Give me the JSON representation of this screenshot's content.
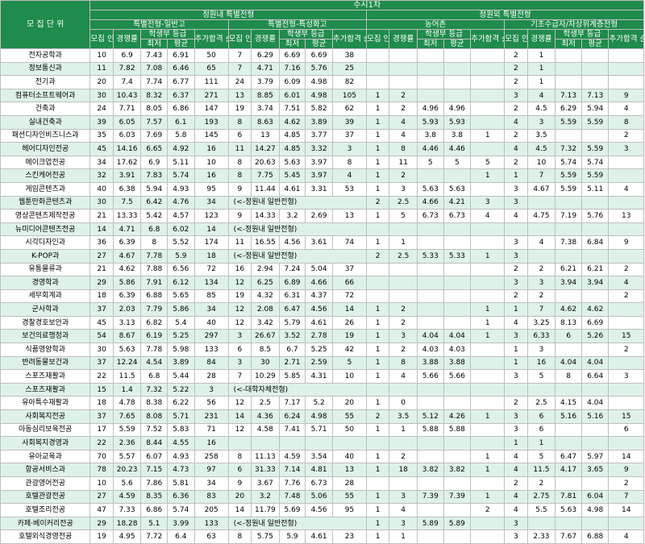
{
  "header": {
    "unit": "모 집 단 위",
    "round": "수시1차",
    "inside": "정원내 특별전형",
    "outside": "정원외 특별전형",
    "g1": "특별전형-일반고",
    "g2": "특별전형-특성화고",
    "g3": "농어촌",
    "g4": "기초수급자/차상위계층전형",
    "recruit": "모집 인원",
    "comp": "경쟁률",
    "grade": "학생부 등급",
    "min": "최저",
    "avg": "평균",
    "add": "추가합격 순위"
  },
  "rows": [
    {
      "name": "전자공학과",
      "v": [
        "10",
        "6.9",
        "7.43",
        "6.91",
        "50",
        "7",
        "6.29",
        "6.69",
        "6.69",
        "38",
        "",
        "",
        "",
        "",
        "",
        "2",
        "1",
        "",
        "",
        ""
      ]
    },
    {
      "name": "정보통신과",
      "v": [
        "11",
        "7.82",
        "7.08",
        "6.46",
        "65",
        "7",
        "4.71",
        "7.16",
        "5.76",
        "25",
        "",
        "",
        "",
        "",
        "",
        "2",
        "1",
        "",
        "",
        ""
      ]
    },
    {
      "name": "전기과",
      "v": [
        "20",
        "7.4",
        "7.74",
        "6.77",
        "111",
        "24",
        "3.79",
        "6.09",
        "4.98",
        "82",
        "",
        "",
        "",
        "",
        "",
        "2",
        "1",
        "",
        "",
        ""
      ]
    },
    {
      "name": "컴퓨터소프트웨어과",
      "v": [
        "30",
        "10.43",
        "8.32",
        "6.37",
        "271",
        "13",
        "8.85",
        "6.01",
        "4.98",
        "105",
        "1",
        "2",
        "",
        "",
        "",
        "3",
        "4",
        "7.13",
        "7.13",
        "9"
      ]
    },
    {
      "name": "건축과",
      "v": [
        "24",
        "7.71",
        "8.05",
        "6.86",
        "147",
        "19",
        "3.74",
        "7.51",
        "5.82",
        "62",
        "1",
        "2",
        "4.96",
        "4.96",
        "",
        "2",
        "4.5",
        "6.29",
        "5.94",
        "4"
      ]
    },
    {
      "name": "실내건축과",
      "v": [
        "39",
        "6.05",
        "7.57",
        "6.1",
        "193",
        "8",
        "8.63",
        "4.62",
        "3.89",
        "39",
        "1",
        "4",
        "5.93",
        "5.93",
        "",
        "4",
        "3",
        "5.59",
        "5.59",
        "8"
      ]
    },
    {
      "name": "패션디자인비즈니스과",
      "v": [
        "35",
        "6.03",
        "7.69",
        "5.8",
        "145",
        "6",
        "13",
        "4.85",
        "3.77",
        "37",
        "1",
        "4",
        "3.8",
        "3.8",
        "1",
        "2",
        "3.5",
        "",
        "",
        "2"
      ]
    },
    {
      "name": "헤어디자인전공",
      "v": [
        "45",
        "14.16",
        "6.65",
        "4.92",
        "16",
        "11",
        "14.27",
        "4.85",
        "3.32",
        "3",
        "1",
        "8",
        "4.46",
        "4.46",
        "",
        "4",
        "4.5",
        "7.32",
        "5.59",
        "3"
      ]
    },
    {
      "name": "메이크업전공",
      "v": [
        "34",
        "17.62",
        "6.9",
        "5.11",
        "10",
        "8",
        "20.63",
        "5.63",
        "3.97",
        "8",
        "1",
        "11",
        "5",
        "5",
        "5",
        "2",
        "10",
        "5.74",
        "5.74",
        ""
      ]
    },
    {
      "name": "스킨케어전공",
      "v": [
        "32",
        "3.91",
        "7.83",
        "5.74",
        "16",
        "8",
        "7.75",
        "5.45",
        "3.97",
        "4",
        "1",
        "2",
        "",
        "",
        "1",
        "1",
        "7",
        "5.59",
        "5.59",
        ""
      ]
    },
    {
      "name": "게임콘텐츠과",
      "v": [
        "40",
        "6.38",
        "5.94",
        "4.93",
        "95",
        "9",
        "11.44",
        "4.61",
        "3.31",
        "53",
        "1",
        "3",
        "5.63",
        "5.63",
        "",
        "3",
        "4.67",
        "5.59",
        "5.11",
        "4"
      ]
    },
    {
      "name": "웹툰만화콘텐츠과",
      "v": [
        "30",
        "7.5",
        "6.42",
        "4.76",
        "34",
        "",
        "",
        "",
        "",
        "",
        "2",
        "2.5",
        "4.66",
        "4.21",
        "3",
        "3",
        "",
        "",
        "",
        ""
      ],
      "note": "(<-정원내 일반전형)"
    },
    {
      "name": "영상콘텐츠제작전공",
      "v": [
        "21",
        "13.33",
        "5.42",
        "4.57",
        "123",
        "9",
        "14.33",
        "3.2",
        "2.69",
        "13",
        "1",
        "5",
        "6.73",
        "6.73",
        "4",
        "4",
        "4.75",
        "7.19",
        "5.76",
        "13"
      ]
    },
    {
      "name": "뉴미디어콘텐츠전공",
      "v": [
        "14",
        "4.71",
        "6.8",
        "6.02",
        "14",
        "",
        "",
        "",
        "",
        "",
        "",
        "",
        "",
        "",
        "",
        "",
        "",
        "",
        "",
        ""
      ],
      "note": "(<-정원내 일반전형)"
    },
    {
      "name": "시각디자인과",
      "v": [
        "36",
        "6.39",
        "8",
        "5.52",
        "174",
        "11",
        "16.55",
        "4.56",
        "3.61",
        "74",
        "1",
        "1",
        "",
        "",
        "",
        "3",
        "4",
        "7.38",
        "6.84",
        "9"
      ]
    },
    {
      "name": "K-POP과",
      "v": [
        "27",
        "4.67",
        "7.78",
        "5.9",
        "18",
        "",
        "",
        "",
        "",
        "",
        "2",
        "2.5",
        "5.33",
        "5.33",
        "1",
        "3",
        "",
        "",
        "",
        ""
      ],
      "note": "(<-정원내 일반전형)"
    },
    {
      "name": "유통물류과",
      "v": [
        "21",
        "4.62",
        "7.88",
        "6.56",
        "72",
        "16",
        "2.94",
        "7.24",
        "5.04",
        "37",
        "",
        "",
        "",
        "",
        "",
        "2",
        "2",
        "6.21",
        "6.21",
        "2"
      ]
    },
    {
      "name": "경영학과",
      "v": [
        "29",
        "5.86",
        "7.91",
        "6.12",
        "134",
        "12",
        "6.25",
        "6.89",
        "4.66",
        "66",
        "",
        "",
        "",
        "",
        "",
        "3",
        "3",
        "3.94",
        "3.94",
        "4"
      ]
    },
    {
      "name": "세무회계과",
      "v": [
        "18",
        "6.39",
        "6.88",
        "5.65",
        "85",
        "19",
        "4.32",
        "6.31",
        "4.37",
        "72",
        "",
        "",
        "",
        "",
        "",
        "2",
        "2",
        "",
        "",
        "2"
      ]
    },
    {
      "name": "군사학과",
      "v": [
        "37",
        "2.03",
        "7.79",
        "5.86",
        "34",
        "12",
        "2.08",
        "6.47",
        "4.56",
        "14",
        "1",
        "2",
        "",
        "",
        "1",
        "1",
        "7",
        "4.62",
        "4.62",
        ""
      ]
    },
    {
      "name": "경찰경호보안과",
      "v": [
        "45",
        "3.13",
        "6.82",
        "5.4",
        "40",
        "12",
        "3.42",
        "5.79",
        "4.61",
        "26",
        "1",
        "2",
        "",
        "",
        "1",
        "4",
        "3.25",
        "8.13",
        "6.69",
        ""
      ]
    },
    {
      "name": "보건의료행정과",
      "v": [
        "54",
        "8.67",
        "6.19",
        "5.25",
        "297",
        "3",
        "26.67",
        "3.52",
        "2.78",
        "19",
        "1",
        "3",
        "4.04",
        "4.04",
        "1",
        "3",
        "6.33",
        "6",
        "5.26",
        "15"
      ]
    },
    {
      "name": "식품영양학과",
      "v": [
        "30",
        "5.63",
        "7.78",
        "5.98",
        "133",
        "6",
        "8.5",
        "6.7",
        "5.25",
        "42",
        "1",
        "2",
        "4.03",
        "4.03",
        "",
        "1",
        "3",
        "",
        "",
        "2"
      ]
    },
    {
      "name": "반려동물보건과",
      "v": [
        "37",
        "12.24",
        "4.54",
        "3.89",
        "84",
        "3",
        "30",
        "2.71",
        "2.59",
        "5",
        "1",
        "8",
        "3.88",
        "3.88",
        "",
        "1",
        "16",
        "4.04",
        "4.04",
        ""
      ]
    },
    {
      "name": "스포츠재활과",
      "v": [
        "22",
        "11.5",
        "6.8",
        "5.44",
        "28",
        "7",
        "10.29",
        "5.85",
        "4.31",
        "10",
        "1",
        "4",
        "5.66",
        "5.66",
        "",
        "3",
        "5",
        "8",
        "6.64",
        "3"
      ]
    },
    {
      "name": "스포츠재활과",
      "v": [
        "15",
        "1.4",
        "7.32",
        "5.22",
        "3",
        "",
        "",
        "",
        "",
        "",
        "",
        "",
        "",
        "",
        "",
        "",
        "",
        "",
        "",
        ""
      ],
      "note": "(<-대학자체전형)"
    },
    {
      "name": "유아특수재활과",
      "v": [
        "18",
        "4.78",
        "8.38",
        "6.22",
        "56",
        "12",
        "2.5",
        "7.17",
        "5.2",
        "20",
        "1",
        "0",
        "",
        "",
        "",
        "2",
        "2.5",
        "4.15",
        "4.04",
        ""
      ]
    },
    {
      "name": "사회복지전공",
      "v": [
        "37",
        "7.65",
        "8.08",
        "5.71",
        "231",
        "14",
        "4.36",
        "6.24",
        "4.98",
        "55",
        "2",
        "3.5",
        "5.12",
        "4.26",
        "1",
        "3",
        "6",
        "5.16",
        "5.16",
        "15"
      ]
    },
    {
      "name": "아동심리보육전공",
      "v": [
        "17",
        "5.59",
        "7.52",
        "5.83",
        "71",
        "12",
        "4.58",
        "7.41",
        "5.71",
        "50",
        "1",
        "1",
        "5.88",
        "5.88",
        "",
        "3",
        "6",
        "",
        "",
        "6"
      ]
    },
    {
      "name": "사회복지경영과",
      "v": [
        "22",
        "2.36",
        "8.44",
        "4.55",
        "16",
        "",
        "",
        "",
        "",
        "",
        "",
        "",
        "",
        "",
        "",
        "1",
        "1",
        "",
        "",
        ""
      ]
    },
    {
      "name": "유아교육과",
      "v": [
        "70",
        "5.57",
        "6.07",
        "4.93",
        "258",
        "8",
        "11.13",
        "4.59",
        "3.54",
        "40",
        "1",
        "2",
        "",
        "",
        "1",
        "4",
        "5",
        "6.47",
        "5.97",
        "14"
      ]
    },
    {
      "name": "항공서비스과",
      "v": [
        "78",
        "20.23",
        "7.15",
        "4.73",
        "97",
        "6",
        "31.33",
        "7.14",
        "4.81",
        "13",
        "1",
        "18",
        "3.82",
        "3.82",
        "1",
        "4",
        "11.5",
        "4.17",
        "3.65",
        "9"
      ]
    },
    {
      "name": "관광영어전공",
      "v": [
        "10",
        "5.6",
        "7.86",
        "5.81",
        "34",
        "9",
        "3.67",
        "7.76",
        "6.73",
        "28",
        "",
        "",
        "",
        "",
        "",
        "2",
        "2",
        "",
        "",
        "2"
      ]
    },
    {
      "name": "호텔관광전공",
      "v": [
        "27",
        "4.59",
        "8.35",
        "6.36",
        "83",
        "20",
        "3.2",
        "7.48",
        "5.06",
        "55",
        "1",
        "3",
        "7.39",
        "7.39",
        "1",
        "4",
        "2.75",
        "7.81",
        "6.04",
        "7"
      ]
    },
    {
      "name": "호텔조리전공",
      "v": [
        "47",
        "7.33",
        "6.86",
        "5.74",
        "205",
        "14",
        "11.79",
        "5.69",
        "4.56",
        "95",
        "1",
        "4",
        "",
        "",
        "2",
        "4",
        "5.5",
        "5.63",
        "4.98",
        "14"
      ]
    },
    {
      "name": "카페·베이커리전공",
      "v": [
        "29",
        "18.28",
        "5.1",
        "3.99",
        "133",
        "",
        "",
        "",
        "",
        "",
        "1",
        "3",
        "5.89",
        "5.89",
        "",
        "3",
        "",
        "",
        "",
        ""
      ],
      "note": "(<-정원내 일반전형)"
    },
    {
      "name": "호텔외식경영전공",
      "v": [
        "19",
        "4.95",
        "7.72",
        "6.4",
        "63",
        "8",
        "5.75",
        "5.9",
        "4.61",
        "23",
        "1",
        "1",
        "",
        "",
        "",
        "3",
        "2.33",
        "7.67",
        "6.88",
        "4"
      ]
    }
  ]
}
